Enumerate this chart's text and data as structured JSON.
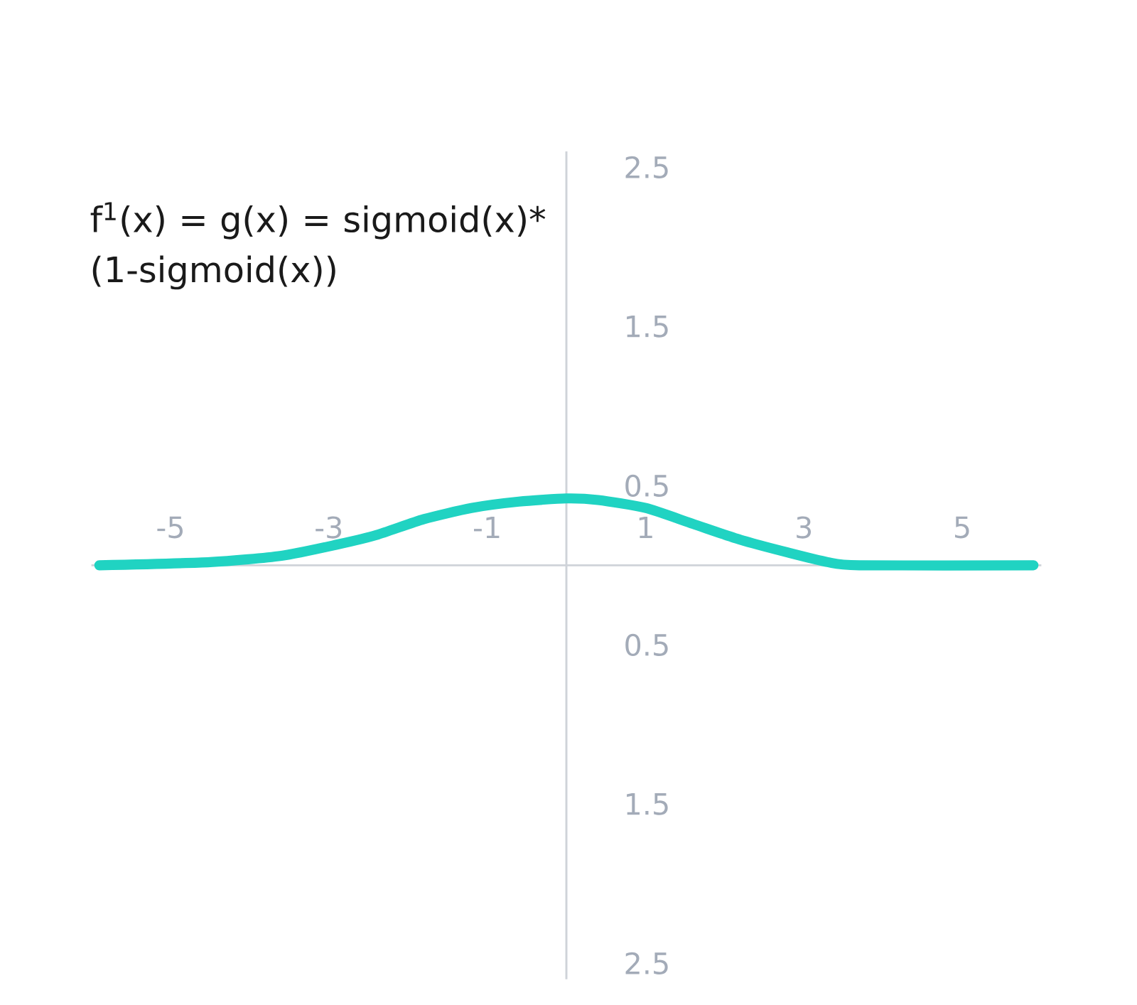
{
  "chart_data": {
    "type": "line",
    "annotations": [
      "f$^{1}$(x) = g(x) = sigmoid(x)* (1-sigmoid(x))"
    ],
    "x": [
      -5.9,
      -4.5,
      -3.6,
      -2.9,
      -2.4,
      -1.8,
      -1.2,
      -0.6,
      0,
      0.4,
      1.0,
      1.6,
      2.2,
      2.8,
      3.3,
      3.7,
      5.9
    ],
    "series": [
      {
        "color": "#20d3c2",
        "values": [
          0,
          0.02,
          0.06,
          0.13,
          0.19,
          0.29,
          0.36,
          0.4,
          0.42,
          0.41,
          0.36,
          0.26,
          0.16,
          0.08,
          0.02,
          0,
          0
        ]
      }
    ],
    "xlim": [
      -6,
      6
    ],
    "ylim": [
      -2.6,
      2.6
    ],
    "xticks": [
      -5,
      -3,
      -1,
      1,
      3,
      5
    ],
    "yticks": [
      2.5,
      1.5,
      0.5,
      {
        "value": -0.5,
        "label": "0.5"
      },
      {
        "value": -1.5,
        "label": "1.5"
      },
      {
        "value": -2.5,
        "label": "2.5"
      }
    ],
    "marker": "none",
    "line_style": "solid"
  }
}
